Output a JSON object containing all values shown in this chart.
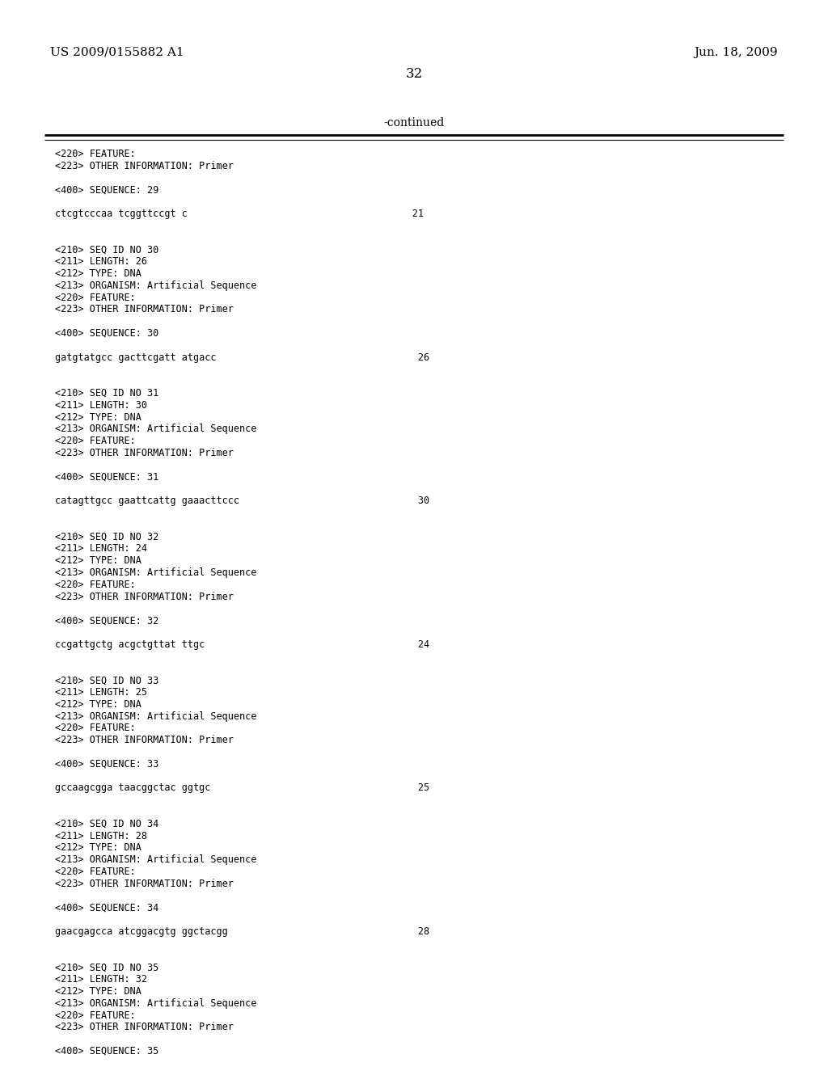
{
  "header_left": "US 2009/0155882 A1",
  "header_right": "Jun. 18, 2009",
  "page_number": "32",
  "continued_text": "-continued",
  "background_color": "#ffffff",
  "text_color": "#000000",
  "font_size_header": 11,
  "font_size_mono": 8.5,
  "font_size_page": 12,
  "font_size_continued": 10,
  "content": [
    "<220> FEATURE:",
    "<223> OTHER INFORMATION: Primer",
    "",
    "<400> SEQUENCE: 29",
    "",
    "ctcgtcccaa tcggttccgt c                                       21",
    "",
    "",
    "<210> SEQ ID NO 30",
    "<211> LENGTH: 26",
    "<212> TYPE: DNA",
    "<213> ORGANISM: Artificial Sequence",
    "<220> FEATURE:",
    "<223> OTHER INFORMATION: Primer",
    "",
    "<400> SEQUENCE: 30",
    "",
    "gatgtatgcc gacttcgatt atgacc                                   26",
    "",
    "",
    "<210> SEQ ID NO 31",
    "<211> LENGTH: 30",
    "<212> TYPE: DNA",
    "<213> ORGANISM: Artificial Sequence",
    "<220> FEATURE:",
    "<223> OTHER INFORMATION: Primer",
    "",
    "<400> SEQUENCE: 31",
    "",
    "catagttgcc gaattcattg gaaacttccc                               30",
    "",
    "",
    "<210> SEQ ID NO 32",
    "<211> LENGTH: 24",
    "<212> TYPE: DNA",
    "<213> ORGANISM: Artificial Sequence",
    "<220> FEATURE:",
    "<223> OTHER INFORMATION: Primer",
    "",
    "<400> SEQUENCE: 32",
    "",
    "ccgattgctg acgctgttat ttgc                                     24",
    "",
    "",
    "<210> SEQ ID NO 33",
    "<211> LENGTH: 25",
    "<212> TYPE: DNA",
    "<213> ORGANISM: Artificial Sequence",
    "<220> FEATURE:",
    "<223> OTHER INFORMATION: Primer",
    "",
    "<400> SEQUENCE: 33",
    "",
    "gccaagcgga taacggctac ggtgc                                    25",
    "",
    "",
    "<210> SEQ ID NO 34",
    "<211> LENGTH: 28",
    "<212> TYPE: DNA",
    "<213> ORGANISM: Artificial Sequence",
    "<220> FEATURE:",
    "<223> OTHER INFORMATION: Primer",
    "",
    "<400> SEQUENCE: 34",
    "",
    "gaacgagcca atcggacgtg ggctacgg                                 28",
    "",
    "",
    "<210> SEQ ID NO 35",
    "<211> LENGTH: 32",
    "<212> TYPE: DNA",
    "<213> ORGANISM: Artificial Sequence",
    "<220> FEATURE:",
    "<223> OTHER INFORMATION: Primer",
    "",
    "<400> SEQUENCE: 35"
  ]
}
